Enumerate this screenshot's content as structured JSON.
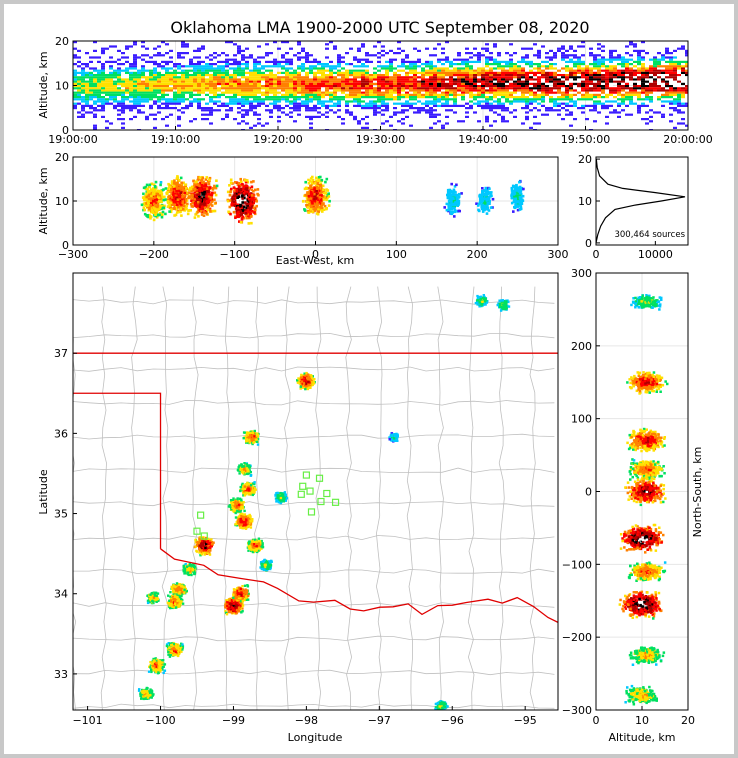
{
  "title": "Oklahoma LMA 1900-2000 UTC September 08, 2020",
  "colors": {
    "state_border": "#e00000",
    "county_lines": "#c0c0c0",
    "station_marker": "#66ee44",
    "density_scale": [
      "#3a1cff",
      "#00c8ff",
      "#00e060",
      "#ffe000",
      "#ff8000",
      "#ff0000",
      "#b00000",
      "#000000",
      "#ffffff"
    ]
  },
  "time_panel": {
    "ylabel": "Altitude, km",
    "yticks": [
      "0",
      "10",
      "20"
    ],
    "xticks": [
      "19:00:00",
      "19:10:00",
      "19:20:00",
      "19:30:00",
      "19:40:00",
      "19:50:00",
      "20:00:00"
    ],
    "xlim_minutes": [
      0,
      60
    ],
    "ylim": [
      0,
      20
    ]
  },
  "ew_panel": {
    "ylabel": "Altitude, km",
    "xlabel": "East-West, km",
    "xticks": [
      "−300",
      "−200",
      "−100",
      "0",
      "100",
      "200",
      "300"
    ],
    "yticks": [
      "0",
      "10",
      "20"
    ],
    "xlim": [
      -300,
      300
    ],
    "ylim": [
      0,
      20
    ]
  },
  "hist_panel": {
    "yticks": [
      "0",
      "10",
      "20"
    ],
    "xticks": [
      "0",
      "10000"
    ],
    "annotation": "300,464 sources",
    "xlim": [
      0,
      15500
    ],
    "ylim": [
      -0.5,
      20.5
    ]
  },
  "map_panel": {
    "xlabel": "Longitude",
    "ylabel": "Latitude",
    "xticks": [
      "−101",
      "−100",
      "−99",
      "−98",
      "−97",
      "−96",
      "−95"
    ],
    "yticks": [
      "33",
      "34",
      "35",
      "36",
      "37"
    ],
    "xlim": [
      -101.2,
      -94.55
    ],
    "ylim": [
      32.55,
      38.0
    ]
  },
  "ns_panel": {
    "xlabel": "Altitude, km",
    "ylabel": "North-South, km",
    "xticks": [
      "0",
      "10",
      "20"
    ],
    "yticks": [
      "−300",
      "−200",
      "−100",
      "0",
      "100",
      "200",
      "300"
    ],
    "xlim": [
      0,
      20
    ],
    "ylim": [
      -300,
      300
    ]
  },
  "chart_data": {
    "type": "heatmap",
    "title": "Oklahoma LMA 1900-2000 UTC September 08, 2020",
    "total_sources": 300464,
    "time_altitude_band": {
      "time_minutes": [
        0,
        10,
        20,
        30,
        40,
        50,
        60
      ],
      "core_altitude_km": [
        10,
        10.5,
        10.5,
        10.5,
        11,
        11,
        11.5
      ]
    },
    "ew_clusters": [
      {
        "x": -200,
        "z": 10,
        "intensity": 5
      },
      {
        "x": -170,
        "z": 11,
        "intensity": 6
      },
      {
        "x": -140,
        "z": 11,
        "intensity": 7
      },
      {
        "x": -90,
        "z": 10,
        "intensity": 8
      },
      {
        "x": 0,
        "z": 11,
        "intensity": 6
      },
      {
        "x": 170,
        "z": 10,
        "intensity": 2
      },
      {
        "x": 210,
        "z": 10,
        "intensity": 2
      },
      {
        "x": 250,
        "z": 11,
        "intensity": 2
      }
    ],
    "altitude_histogram": {
      "altitude_km": [
        0,
        2,
        4,
        6,
        8,
        9,
        10,
        11,
        12,
        13,
        14,
        16,
        18,
        20
      ],
      "counts": [
        0,
        300,
        800,
        1600,
        3200,
        6500,
        11000,
        15000,
        10000,
        4500,
        2000,
        600,
        200,
        50
      ]
    },
    "map_clusters": [
      {
        "lon": -95.6,
        "lat": 37.65,
        "intensity": 3
      },
      {
        "lon": -95.3,
        "lat": 37.6,
        "intensity": 3
      },
      {
        "lon": -98.0,
        "lat": 36.65,
        "intensity": 6
      },
      {
        "lon": -98.75,
        "lat": 35.95,
        "intensity": 5
      },
      {
        "lon": -98.85,
        "lat": 35.55,
        "intensity": 4
      },
      {
        "lon": -98.8,
        "lat": 35.3,
        "intensity": 5
      },
      {
        "lon": -98.95,
        "lat": 35.1,
        "intensity": 5
      },
      {
        "lon": -98.85,
        "lat": 34.9,
        "intensity": 6
      },
      {
        "lon": -99.4,
        "lat": 34.6,
        "intensity": 7
      },
      {
        "lon": -98.7,
        "lat": 34.6,
        "intensity": 5
      },
      {
        "lon": -99.6,
        "lat": 34.3,
        "intensity": 4
      },
      {
        "lon": -99.75,
        "lat": 34.05,
        "intensity": 5
      },
      {
        "lon": -99.8,
        "lat": 33.9,
        "intensity": 5
      },
      {
        "lon": -99.0,
        "lat": 33.85,
        "intensity": 7
      },
      {
        "lon": -98.9,
        "lat": 34.0,
        "intensity": 6
      },
      {
        "lon": -100.1,
        "lat": 33.95,
        "intensity": 4
      },
      {
        "lon": -99.8,
        "lat": 33.3,
        "intensity": 5
      },
      {
        "lon": -100.05,
        "lat": 33.1,
        "intensity": 5
      },
      {
        "lon": -100.2,
        "lat": 32.75,
        "intensity": 4
      },
      {
        "lon": -98.35,
        "lat": 35.2,
        "intensity": 3
      },
      {
        "lon": -98.55,
        "lat": 34.35,
        "intensity": 3
      },
      {
        "lon": -96.15,
        "lat": 32.6,
        "intensity": 3
      },
      {
        "lon": -96.8,
        "lat": 35.95,
        "intensity": 2
      }
    ],
    "lma_stations": [
      {
        "lon": -98.0,
        "lat": 35.48
      },
      {
        "lon": -97.82,
        "lat": 35.44
      },
      {
        "lon": -98.05,
        "lat": 35.34
      },
      {
        "lon": -97.95,
        "lat": 35.28
      },
      {
        "lon": -98.07,
        "lat": 35.24
      },
      {
        "lon": -97.72,
        "lat": 35.25
      },
      {
        "lon": -97.8,
        "lat": 35.15
      },
      {
        "lon": -97.6,
        "lat": 35.14
      },
      {
        "lon": -97.93,
        "lat": 35.02
      },
      {
        "lon": -99.45,
        "lat": 34.98
      },
      {
        "lon": -99.5,
        "lat": 34.78
      },
      {
        "lon": -99.4,
        "lat": 34.72
      }
    ],
    "ns_clusters": [
      {
        "y": 260,
        "z": 11,
        "intensity": 3
      },
      {
        "y": 150,
        "z": 11,
        "intensity": 6
      },
      {
        "y": 70,
        "z": 11,
        "intensity": 6
      },
      {
        "y": 30,
        "z": 11,
        "intensity": 5
      },
      {
        "y": 0,
        "z": 11,
        "intensity": 7
      },
      {
        "y": -65,
        "z": 10,
        "intensity": 8
      },
      {
        "y": -110,
        "z": 11,
        "intensity": 5
      },
      {
        "y": -155,
        "z": 10,
        "intensity": 8
      },
      {
        "y": -225,
        "z": 11,
        "intensity": 4
      },
      {
        "y": -280,
        "z": 10,
        "intensity": 4
      }
    ]
  }
}
